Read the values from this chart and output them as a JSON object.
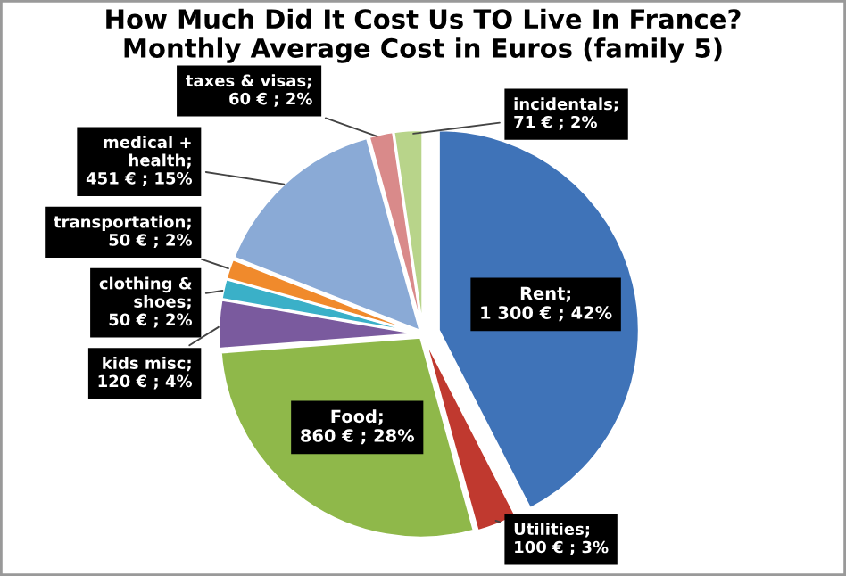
{
  "chart_data": {
    "type": "pie",
    "title": "How Much Did It Cost Us TO Live In France?\nMonthly Average Cost in Euros (family 5)",
    "categories": [
      "Rent",
      "Utilities",
      "Food",
      "kids misc",
      "clothing & shoes",
      "transportation",
      "medical + health",
      "taxes & visas",
      "incidentals"
    ],
    "values": [
      1300,
      100,
      860,
      120,
      50,
      50,
      451,
      60,
      71
    ],
    "colors": [
      "#3f73b8",
      "#c0392f",
      "#8fb84a",
      "#7a5a9e",
      "#3ab0c8",
      "#f08a2c",
      "#8aaad6",
      "#d98a8a",
      "#b8d48a"
    ],
    "value_labels": [
      ";\n1 300 € ; 42%",
      ";\n100 € ; 3%",
      ";\n860 € ; 28%",
      ";\n120 € ; 4%",
      ";\n50 € ; 2%",
      ";\n50 € ; 2%",
      ";\n451 € ; 15%",
      ";\n60 € ; 2%",
      ";\n71 € ; 2%"
    ],
    "legend": false
  }
}
